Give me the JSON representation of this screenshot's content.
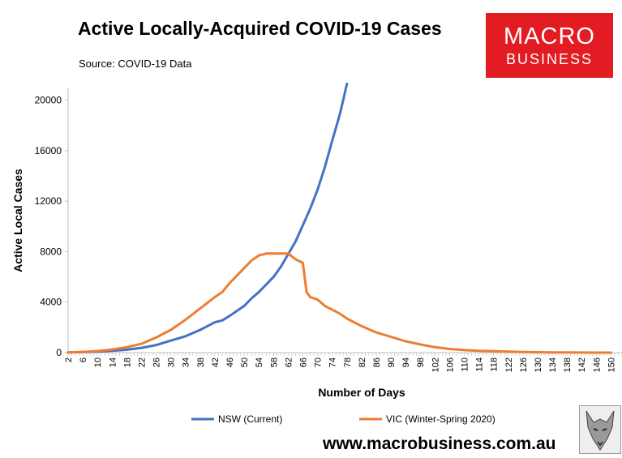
{
  "header": {
    "title": "Active Locally-Acquired COVID-19 Cases",
    "source": "Source: COVID-19 Data"
  },
  "logo": {
    "line1": "MACRO",
    "line2": "BUSINESS",
    "color": "#e31b23",
    "icon_name": "wolf-logo-icon"
  },
  "footer": {
    "url": "www.macrobusiness.com.au"
  },
  "chart_data": {
    "type": "line",
    "xlabel": "Number of Days",
    "ylabel": "Active Local Cases",
    "xlim": [
      2,
      153
    ],
    "ylim": [
      0,
      21000
    ],
    "yticks": [
      0,
      4000,
      8000,
      12000,
      16000,
      20000
    ],
    "xtick_start": 2,
    "xtick_step": 4,
    "xtick_end": 150,
    "grid": false,
    "legend_position": "bottom",
    "series": [
      {
        "name": "NSW (Current)",
        "color": "#4472c4",
        "x": [
          2,
          6,
          10,
          14,
          18,
          22,
          26,
          30,
          34,
          38,
          42,
          44,
          46,
          50,
          52,
          54,
          56,
          58,
          60,
          62,
          64,
          66,
          68,
          70,
          72,
          74,
          76,
          77,
          78
        ],
        "y": [
          10,
          40,
          80,
          150,
          230,
          380,
          600,
          950,
          1300,
          1800,
          2400,
          2550,
          2900,
          3700,
          4300,
          4800,
          5400,
          6000,
          6800,
          7800,
          8800,
          10100,
          11400,
          12900,
          14700,
          16800,
          18800,
          20000,
          21300
        ]
      },
      {
        "name": "VIC (Winter-Spring 2020)",
        "color": "#ed7d31",
        "x": [
          2,
          6,
          10,
          14,
          18,
          22,
          26,
          30,
          34,
          38,
          42,
          44,
          46,
          48,
          50,
          52,
          54,
          56,
          58,
          62,
          64,
          66,
          67,
          68,
          70,
          72,
          74,
          76,
          78,
          82,
          86,
          90,
          94,
          98,
          102,
          106,
          110,
          114,
          118,
          122,
          126,
          130,
          134,
          138,
          142,
          146,
          150
        ],
        "y": [
          20,
          60,
          120,
          250,
          430,
          700,
          1200,
          1800,
          2600,
          3500,
          4400,
          4800,
          5500,
          6100,
          6700,
          7300,
          7700,
          7850,
          7850,
          7850,
          7400,
          7100,
          4800,
          4400,
          4200,
          3700,
          3400,
          3100,
          2700,
          2100,
          1600,
          1250,
          900,
          650,
          430,
          290,
          200,
          150,
          110,
          80,
          50,
          30,
          20,
          10,
          5,
          2,
          0
        ]
      }
    ]
  }
}
